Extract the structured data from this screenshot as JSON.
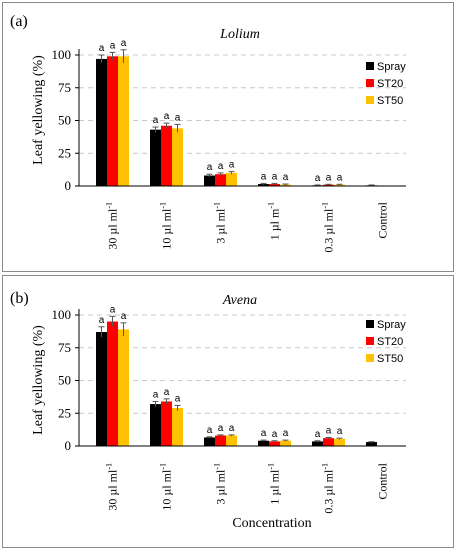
{
  "figure": {
    "xlabel": "Concentration"
  },
  "chart_data": [
    {
      "panel_label": "(a)",
      "title": "Lolium",
      "type": "bar",
      "ylabel": "Leaf yellowing  (%)",
      "xlabel": "",
      "ylim": [
        0,
        100
      ],
      "yticks": [
        0,
        25,
        50,
        75,
        100
      ],
      "grid": "horizontal dashed",
      "legend_position": "top-right",
      "categories": [
        [
          "30 µl ml",
          "-1"
        ],
        [
          "10 µl ml",
          "-1"
        ],
        [
          "3 µl ml",
          "-1"
        ],
        [
          "1 µl m",
          "-1"
        ],
        [
          "0.3 µl ml",
          "-1"
        ],
        [
          "Control",
          ""
        ]
      ],
      "series": [
        {
          "name": "Spray",
          "color": "#000000",
          "values": [
            97,
            43,
            8,
            1.5,
            0.5,
            0.5
          ],
          "errors": [
            3,
            2,
            1,
            0.5,
            0.3,
            0.3
          ],
          "labels": [
            "a",
            "a",
            "a",
            "a",
            "a",
            ""
          ]
        },
        {
          "name": "ST20",
          "color": "#ff0000",
          "values": [
            99,
            46,
            9,
            1.5,
            1,
            null
          ],
          "errors": [
            3,
            2,
            1,
            0.5,
            0.3,
            null
          ],
          "labels": [
            "a",
            "a",
            "a",
            "a",
            "a",
            ""
          ]
        },
        {
          "name": "ST50",
          "color": "#ffc000",
          "values": [
            99,
            44,
            10,
            1,
            1,
            null
          ],
          "errors": [
            5,
            3,
            1,
            0.5,
            0.3,
            null
          ],
          "labels": [
            "a",
            "a",
            "a",
            "a",
            "a",
            ""
          ]
        }
      ]
    },
    {
      "panel_label": "(b)",
      "title": "Avena",
      "type": "bar",
      "ylabel": "Leaf yellowing  (%)",
      "xlabel": "",
      "ylim": [
        0,
        100
      ],
      "yticks": [
        0,
        25,
        50,
        75,
        100
      ],
      "grid": "horizontal dashed",
      "legend_position": "top-right",
      "categories": [
        [
          "30 µl ml",
          "-1"
        ],
        [
          "10 µl ml",
          "-1"
        ],
        [
          "3 µl ml",
          "-1"
        ],
        [
          "1 µl ml",
          "-1"
        ],
        [
          "0.3 µl ml",
          "-1"
        ],
        [
          "Control",
          ""
        ]
      ],
      "series": [
        {
          "name": "Spray",
          "color": "#000000",
          "values": [
            87,
            32,
            6.5,
            4,
            3.5,
            3
          ],
          "errors": [
            4,
            2,
            0.5,
            0.5,
            0.5,
            0.3
          ],
          "labels": [
            "a",
            "a",
            "a",
            "a",
            "a",
            ""
          ]
        },
        {
          "name": "ST20",
          "color": "#ff0000",
          "values": [
            95,
            34,
            8,
            3.5,
            6,
            null
          ],
          "errors": [
            4,
            2,
            0.5,
            0.5,
            0.5,
            null
          ],
          "labels": [
            "a",
            "a",
            "a",
            "a",
            "a",
            ""
          ]
        },
        {
          "name": "ST50",
          "color": "#ffc000",
          "values": [
            89,
            29,
            8,
            4,
            5.5,
            null
          ],
          "errors": [
            5,
            2,
            0.5,
            0.5,
            0.5,
            null
          ],
          "labels": [
            "a",
            "a",
            "a",
            "a",
            "a",
            ""
          ]
        }
      ]
    }
  ]
}
